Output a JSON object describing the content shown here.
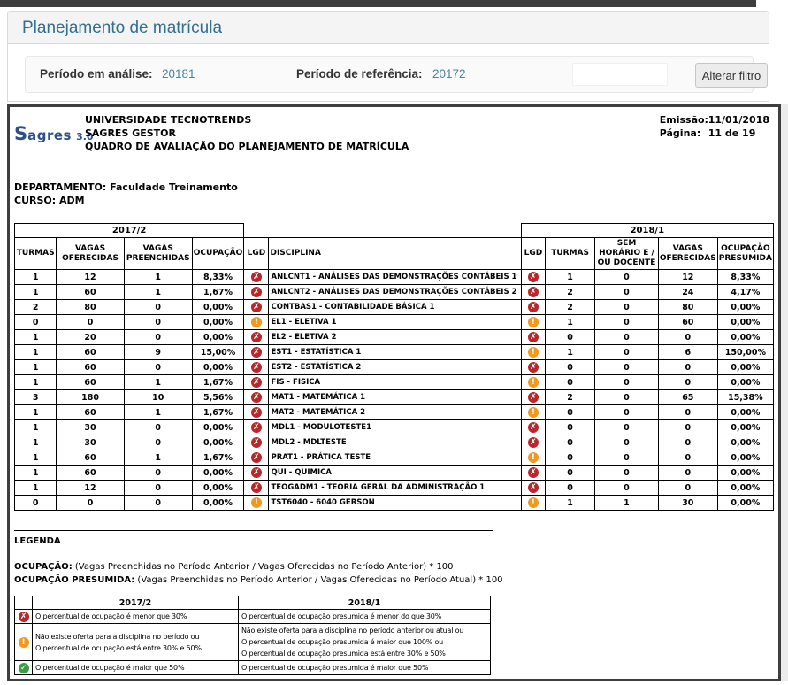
{
  "colors": {
    "accent": "#31708f",
    "value_blue": "#4783a3",
    "error": "#b9262b",
    "warning": "#f2981d",
    "success": "#3a9e3f"
  },
  "icons": {
    "error": "✗",
    "warning": "!",
    "success": "✓"
  },
  "header": {
    "title": "Planejamento de matrícula",
    "filter": {
      "period_analysis_label": "Período em análise:",
      "period_analysis_value": "20181",
      "period_reference_label": "Período de referência:",
      "period_reference_value": "20172",
      "button_label": "Alterar filtro"
    }
  },
  "report": {
    "logo": {
      "s": "S",
      "rest": "agres",
      "version": "3.0"
    },
    "institution": "UNIVERSIDADE TECNOTRENDS",
    "system": "SAGRES GESTOR",
    "report_title": "QUADRO DE AVALIAÇÃO DO PLANEJAMENTO DE MATRÍCULA",
    "emission_label": "Emissão:",
    "emission_value": "11/01/2018",
    "page_label": "Página:",
    "page_value": "11 de 19",
    "department_label": "DEPARTAMENTO:",
    "department_value": "Faculdade Treinamento",
    "course_label": "CURSO:",
    "course_value": "ADM"
  },
  "table": {
    "group_left": "2017/2",
    "group_right": "2018/1",
    "columns": [
      "TURMAS",
      "VAGAS OFERECIDAS",
      "VAGAS PREENCHIDAS",
      "OCUPAÇÃO",
      "LGD",
      "DISCIPLINA",
      "LGD",
      "TURMAS",
      "SEM HORÁRIO E / OU DOCENTE",
      "VAGAS OFERECIDAS",
      "OCUPAÇÃO PRESUMIDA"
    ],
    "rows": [
      [
        "1",
        "12",
        "1",
        "8,33%",
        "error",
        "ANLCNT1 - ANÁLISES DAS DEMONSTRAÇÕES CONTÁBEIS 1",
        "error",
        "1",
        "0",
        "12",
        "8,33%"
      ],
      [
        "1",
        "60",
        "1",
        "1,67%",
        "error",
        "ANLCNT2 - ANÁLISES DAS DEMONSTRAÇÕES CONTÁBEIS 2",
        "error",
        "2",
        "0",
        "24",
        "4,17%"
      ],
      [
        "2",
        "80",
        "0",
        "0,00%",
        "error",
        "CONTBAS1 - CONTABILIDADE BÁSICA 1",
        "error",
        "2",
        "0",
        "80",
        "0,00%"
      ],
      [
        "0",
        "0",
        "0",
        "0,00%",
        "warning",
        "EL1 - ELETIVA 1",
        "warning",
        "1",
        "0",
        "60",
        "0,00%"
      ],
      [
        "1",
        "20",
        "0",
        "0,00%",
        "error",
        "EL2 - ELETIVA 2",
        "error",
        "0",
        "0",
        "0",
        "0,00%"
      ],
      [
        "1",
        "60",
        "9",
        "15,00%",
        "error",
        "EST1 - ESTATÍSTICA 1",
        "warning",
        "1",
        "0",
        "6",
        "150,00%"
      ],
      [
        "1",
        "60",
        "0",
        "0,00%",
        "error",
        "EST2 - ESTATÍSTICA 2",
        "error",
        "0",
        "0",
        "0",
        "0,00%"
      ],
      [
        "1",
        "60",
        "1",
        "1,67%",
        "error",
        "FIS - FISICA",
        "warning",
        "0",
        "0",
        "0",
        "0,00%"
      ],
      [
        "3",
        "180",
        "10",
        "5,56%",
        "error",
        "MAT1 - MATEMÁTICA 1",
        "error",
        "2",
        "0",
        "65",
        "15,38%"
      ],
      [
        "1",
        "60",
        "1",
        "1,67%",
        "error",
        "MAT2 - MATEMÁTICA 2",
        "warning",
        "0",
        "0",
        "0",
        "0,00%"
      ],
      [
        "1",
        "30",
        "0",
        "0,00%",
        "error",
        "MDL1 - MODULOTESTE1",
        "error",
        "0",
        "0",
        "0",
        "0,00%"
      ],
      [
        "1",
        "30",
        "0",
        "0,00%",
        "error",
        "MDL2 - MDLTESTE",
        "error",
        "0",
        "0",
        "0",
        "0,00%"
      ],
      [
        "1",
        "60",
        "1",
        "1,67%",
        "error",
        "PRAT1 - PRÁTICA TESTE",
        "warning",
        "0",
        "0",
        "0",
        "0,00%"
      ],
      [
        "1",
        "60",
        "0",
        "0,00%",
        "error",
        "QUI - QUIMICA",
        "error",
        "0",
        "0",
        "0",
        "0,00%"
      ],
      [
        "1",
        "12",
        "0",
        "0,00%",
        "error",
        "TEOGADM1 - TEORIA GERAL DA ADMINISTRAÇÃO 1",
        "error",
        "0",
        "0",
        "0",
        "0,00%"
      ],
      [
        "0",
        "0",
        "0",
        "0,00%",
        "warning",
        "TST6040 - 6040 GERSON",
        "warning",
        "1",
        "1",
        "30",
        "0,00%"
      ]
    ]
  },
  "legend": {
    "title": "LEGENDA",
    "formula1_label": "OCUPAÇÃO:",
    "formula1_text": " (Vagas Preenchidas no Período Anterior / Vagas Oferecidas no Período Anterior) * 100",
    "formula2_label": "OCUPAÇÃO PRESUMIDA:",
    "formula2_text": "  (Vagas Preenchidas no Período Anterior / Vagas Oferecidas no Período Atual) * 100",
    "col_2017": "2017/2",
    "col_2018": "2018/1",
    "rows": [
      {
        "icon": "error",
        "left": [
          "O percentual de ocupação é menor que 30%"
        ],
        "right": [
          "O percentual de ocupação presumida é menor do que 30%"
        ]
      },
      {
        "icon": "warning",
        "left": [
          "Não existe oferta para a disciplina no período ou",
          "O percentual de ocupação está entre 30% e 50%"
        ],
        "right": [
          "Não existe oferta para a disciplina no período anterior ou atual ou",
          "O percentual de ocupação presumida é maior que 100% ou",
          "O percentual de ocupação presumida está entre 30% e 50%"
        ]
      },
      {
        "icon": "success",
        "left": [
          "O percentual de ocupação é maior que 50%"
        ],
        "right": [
          "O percentual de ocupação presumida é maior que 50%"
        ]
      }
    ]
  }
}
